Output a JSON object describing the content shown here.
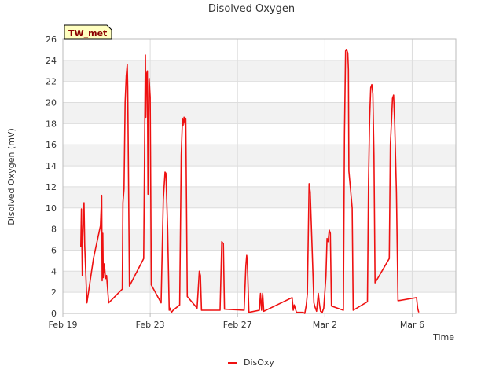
{
  "chart_data": {
    "type": "line",
    "title": "Disolved Oxygen",
    "xlabel": "Time",
    "ylabel": "Disolved Oxygen (mV)",
    "badge": "TW_met",
    "ylim": [
      0,
      26
    ],
    "y_ticks": [
      0,
      2,
      4,
      6,
      8,
      10,
      12,
      14,
      16,
      18,
      20,
      22,
      24,
      26
    ],
    "xlim": [
      0,
      18
    ],
    "x_ticks": [
      {
        "value": 0,
        "label": "Feb 19"
      },
      {
        "value": 4,
        "label": "Feb 23"
      },
      {
        "value": 8,
        "label": "Feb 27"
      },
      {
        "value": 12,
        "label": "Mar 2"
      },
      {
        "value": 16,
        "label": "Mar 6"
      }
    ],
    "grid": true,
    "legend_position": "bottom",
    "colors": {
      "series": "#ee1111",
      "band": "#f2f2f2",
      "grid": "#dddddd",
      "axis": "#bbbbbb",
      "badge_bg": "#ffffc0"
    },
    "series": [
      {
        "name": "DisOxy",
        "points": [
          [
            0.82,
            6.3
          ],
          [
            0.85,
            9.9
          ],
          [
            0.87,
            6.5
          ],
          [
            0.89,
            3.6
          ],
          [
            0.91,
            7.2
          ],
          [
            0.93,
            8.5
          ],
          [
            0.97,
            10.5
          ],
          [
            1.0,
            6.4
          ],
          [
            1.1,
            1.0
          ],
          [
            1.4,
            5.2
          ],
          [
            1.72,
            8.3
          ],
          [
            1.78,
            11.2
          ],
          [
            1.8,
            3.1
          ],
          [
            1.83,
            7.6
          ],
          [
            1.85,
            3.4
          ],
          [
            1.9,
            4.7
          ],
          [
            1.95,
            3.3
          ],
          [
            2.0,
            3.6
          ],
          [
            2.1,
            1.0
          ],
          [
            2.72,
            2.3
          ],
          [
            2.75,
            10.5
          ],
          [
            2.8,
            11.8
          ],
          [
            2.85,
            20.0
          ],
          [
            2.9,
            22.5
          ],
          [
            2.95,
            23.6
          ],
          [
            2.97,
            21.5
          ],
          [
            3.05,
            2.6
          ],
          [
            3.7,
            5.2
          ],
          [
            3.75,
            17.9
          ],
          [
            3.78,
            24.5
          ],
          [
            3.8,
            18.6
          ],
          [
            3.83,
            22.7
          ],
          [
            3.87,
            23.0
          ],
          [
            3.9,
            11.3
          ],
          [
            3.95,
            22.3
          ],
          [
            4.0,
            20.5
          ],
          [
            4.05,
            2.7
          ],
          [
            4.5,
            1.0
          ],
          [
            4.55,
            6.0
          ],
          [
            4.6,
            10.8
          ],
          [
            4.68,
            13.4
          ],
          [
            4.72,
            13.3
          ],
          [
            4.8,
            8.0
          ],
          [
            4.87,
            0.3
          ],
          [
            4.9,
            0.5
          ],
          [
            4.97,
            0.1
          ],
          [
            5.05,
            0.3
          ],
          [
            5.35,
            0.8
          ],
          [
            5.42,
            15.0
          ],
          [
            5.48,
            18.5
          ],
          [
            5.5,
            17.8
          ],
          [
            5.55,
            18.6
          ],
          [
            5.6,
            17.9
          ],
          [
            5.63,
            18.5
          ],
          [
            5.7,
            1.6
          ],
          [
            6.15,
            0.5
          ],
          [
            6.25,
            4.0
          ],
          [
            6.3,
            3.6
          ],
          [
            6.35,
            0.3
          ],
          [
            7.2,
            0.3
          ],
          [
            7.28,
            6.8
          ],
          [
            7.35,
            6.6
          ],
          [
            7.4,
            0.4
          ],
          [
            8.3,
            0.3
          ],
          [
            8.38,
            4.5
          ],
          [
            8.42,
            5.5
          ],
          [
            8.45,
            4.9
          ],
          [
            8.52,
            0.1
          ],
          [
            9.0,
            0.3
          ],
          [
            9.05,
            1.9
          ],
          [
            9.1,
            0.3
          ],
          [
            9.15,
            1.9
          ],
          [
            9.2,
            0.2
          ],
          [
            10.5,
            1.5
          ],
          [
            10.55,
            0.3
          ],
          [
            10.6,
            0.8
          ],
          [
            10.7,
            0.1
          ],
          [
            10.9,
            0.1
          ],
          [
            11.0,
            0.1
          ],
          [
            11.08,
            0.0
          ],
          [
            11.15,
            0.8
          ],
          [
            11.2,
            1.9
          ],
          [
            11.28,
            12.3
          ],
          [
            11.33,
            11.5
          ],
          [
            11.42,
            6.0
          ],
          [
            11.5,
            1.0
          ],
          [
            11.55,
            0.6
          ],
          [
            11.62,
            0.2
          ],
          [
            11.7,
            1.9
          ],
          [
            11.75,
            0.9
          ],
          [
            11.8,
            0.2
          ],
          [
            11.88,
            0.1
          ],
          [
            11.95,
            0.5
          ],
          [
            12.05,
            3.5
          ],
          [
            12.1,
            7.1
          ],
          [
            12.15,
            6.8
          ],
          [
            12.2,
            7.9
          ],
          [
            12.25,
            7.6
          ],
          [
            12.3,
            0.7
          ],
          [
            12.85,
            0.3
          ],
          [
            12.9,
            17.0
          ],
          [
            12.95,
            24.9
          ],
          [
            13.0,
            25.0
          ],
          [
            13.05,
            24.7
          ],
          [
            13.08,
            23.1
          ],
          [
            13.1,
            13.5
          ],
          [
            13.25,
            10.0
          ],
          [
            13.3,
            0.3
          ],
          [
            13.95,
            1.1
          ],
          [
            14.0,
            12.5
          ],
          [
            14.05,
            18.5
          ],
          [
            14.1,
            21.4
          ],
          [
            14.15,
            21.7
          ],
          [
            14.2,
            20.8
          ],
          [
            14.25,
            15.0
          ],
          [
            14.3,
            2.9
          ],
          [
            14.95,
            5.2
          ],
          [
            15.0,
            16.0
          ],
          [
            15.05,
            18.2
          ],
          [
            15.1,
            20.4
          ],
          [
            15.15,
            20.7
          ],
          [
            15.2,
            18.0
          ],
          [
            15.28,
            11.5
          ],
          [
            15.35,
            1.2
          ],
          [
            16.2,
            1.5
          ],
          [
            16.25,
            0.5
          ],
          [
            16.3,
            0.1
          ]
        ]
      }
    ]
  }
}
